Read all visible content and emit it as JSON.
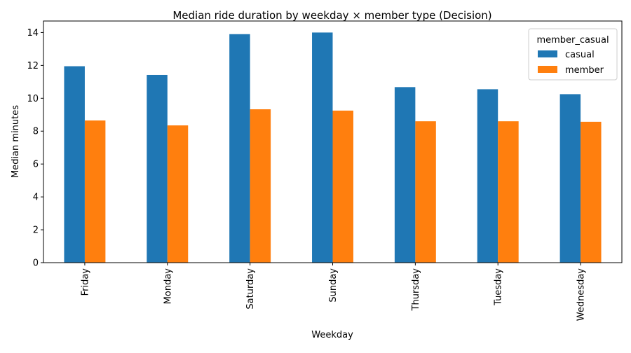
{
  "chart_data": {
    "type": "bar",
    "title": "Median ride duration by weekday × member type (Decision)",
    "xlabel": "Weekday",
    "ylabel": "Median minutes",
    "ylim": [
      0,
      14.7
    ],
    "yticks": [
      0,
      2,
      4,
      6,
      8,
      10,
      12,
      14
    ],
    "grid": false,
    "categories": [
      "Friday",
      "Monday",
      "Saturday",
      "Sunday",
      "Thursday",
      "Tuesday",
      "Wednesday"
    ],
    "series": [
      {
        "name": "casual",
        "color": "#1f77b4",
        "values": [
          11.95,
          11.42,
          13.9,
          14.0,
          10.68,
          10.55,
          10.25
        ]
      },
      {
        "name": "member",
        "color": "#ff7f0e",
        "values": [
          8.65,
          8.35,
          9.33,
          9.25,
          8.6,
          8.6,
          8.57
        ]
      }
    ],
    "legend": {
      "title": "member_casual",
      "position": "top-right"
    }
  }
}
